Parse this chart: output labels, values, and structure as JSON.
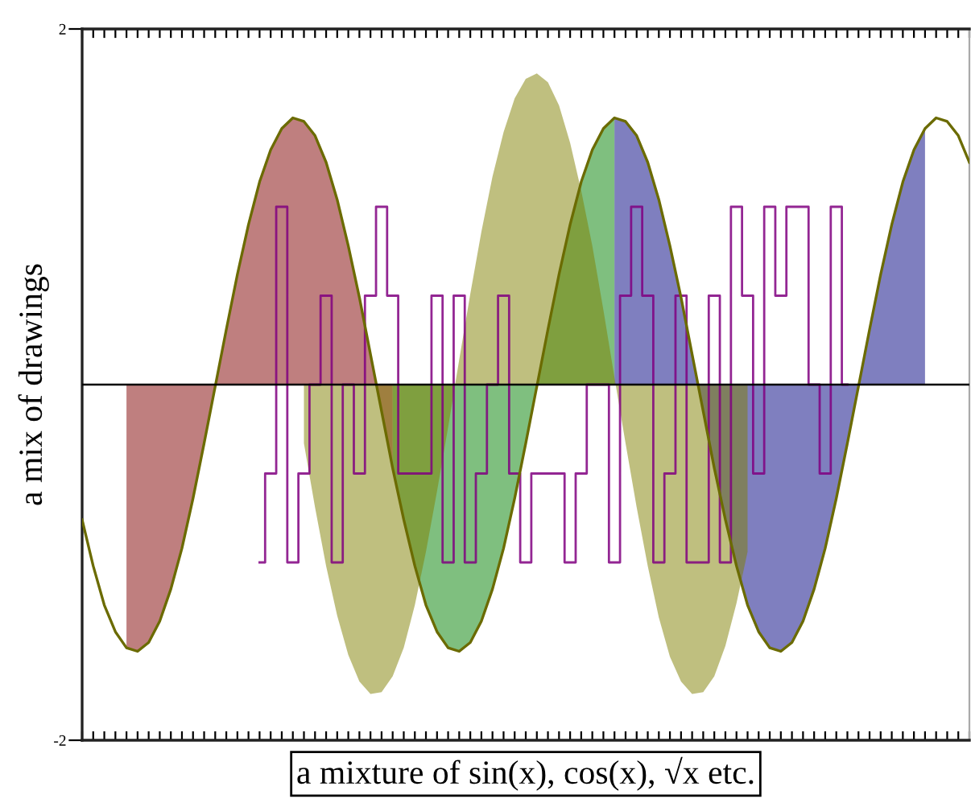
{
  "chart_data": {
    "type": "area",
    "xlabel": "a mixture of sin(x), cos(x), √x etc.",
    "ylabel": "a mix of drawings",
    "categories": [
      null,
      null,
      null,
      null,
      null,
      null,
      null,
      null,
      null,
      null,
      null,
      null,
      null,
      null,
      null,
      null,
      null,
      null,
      null,
      null,
      null,
      null,
      null,
      null,
      null,
      null,
      null,
      null,
      null,
      null,
      null,
      null,
      null,
      null,
      null,
      null,
      null,
      null,
      null,
      null,
      null,
      null,
      null,
      null,
      null,
      null,
      null,
      null,
      null,
      null,
      null,
      null,
      null,
      null,
      null,
      null,
      null,
      null,
      null,
      null,
      null,
      null,
      null,
      null,
      null,
      null,
      null,
      null,
      null,
      null,
      null,
      null,
      null,
      null,
      null,
      null,
      null,
      null,
      null,
      null,
      null
    ],
    "ylim": [
      -2,
      2
    ],
    "yticks": [
      -2,
      2
    ],
    "grid": false,
    "legend": false,
    "ref_lines": [
      {
        "axis": "y",
        "value": 0,
        "color": "#000000"
      }
    ],
    "series": [
      {
        "color": "#800000",
        "values": [
          null,
          null,
          null,
          null,
          -1.48,
          -1.5,
          -1.45,
          -1.33,
          -1.15,
          -0.92,
          -0.64,
          -0.33,
          -0.01,
          0.31,
          0.62,
          0.9,
          1.14,
          1.32,
          1.44,
          1.5,
          1.48,
          1.4,
          1.25,
          1.04,
          0.78,
          0.49,
          0.17,
          -0.15,
          -0.47,
          null,
          null,
          null,
          null,
          null,
          null,
          null,
          null,
          null,
          null,
          null,
          null,
          null,
          null,
          null,
          null,
          null,
          null,
          null,
          null,
          null,
          null,
          null,
          null,
          null,
          null,
          null,
          null,
          null,
          null,
          null,
          null,
          null,
          null,
          null,
          null,
          null,
          null,
          null,
          null,
          null,
          null,
          null,
          null,
          null,
          null,
          null,
          null,
          null,
          null,
          null,
          null
        ]
      },
      {
        "color": "#008000",
        "values": [
          null,
          null,
          null,
          null,
          null,
          null,
          null,
          null,
          null,
          null,
          null,
          null,
          null,
          null,
          null,
          null,
          null,
          null,
          null,
          null,
          null,
          null,
          null,
          null,
          null,
          null,
          null,
          null,
          -0.47,
          -0.76,
          -1.02,
          -1.24,
          -1.39,
          -1.48,
          -1.5,
          -1.45,
          -1.33,
          -1.15,
          -0.92,
          -0.64,
          -0.33,
          -0.01,
          0.31,
          0.62,
          0.9,
          1.14,
          1.32,
          1.44,
          1.5,
          null,
          null,
          null,
          null,
          null,
          null,
          null,
          null,
          null,
          null,
          null,
          null,
          null,
          null,
          null,
          null,
          null,
          null,
          null,
          null,
          null,
          null,
          null,
          null,
          null,
          null,
          null,
          null,
          null,
          null,
          null,
          null
        ]
      },
      {
        "color": "#000080",
        "values": [
          null,
          null,
          null,
          null,
          null,
          null,
          null,
          null,
          null,
          null,
          null,
          null,
          null,
          null,
          null,
          null,
          null,
          null,
          null,
          null,
          null,
          null,
          null,
          null,
          null,
          null,
          null,
          null,
          null,
          null,
          null,
          null,
          null,
          null,
          null,
          null,
          null,
          null,
          null,
          null,
          null,
          null,
          null,
          null,
          null,
          null,
          null,
          null,
          1.5,
          1.48,
          1.4,
          1.25,
          1.04,
          0.78,
          0.49,
          0.17,
          -0.15,
          -0.47,
          -0.76,
          -1.02,
          -1.24,
          -1.39,
          -1.48,
          -1.5,
          -1.45,
          -1.33,
          -1.15,
          -0.92,
          -0.64,
          -0.33,
          -0.01,
          0.31,
          0.62,
          0.9,
          1.14,
          1.32,
          1.44,
          null,
          null,
          null,
          null
        ]
      },
      {
        "color": "#808000",
        "values": [
          null,
          null,
          null,
          null,
          null,
          null,
          null,
          null,
          null,
          null,
          null,
          null,
          null,
          null,
          null,
          null,
          null,
          null,
          null,
          null,
          -0.33,
          -0.69,
          -1.02,
          -1.3,
          -1.52,
          -1.67,
          -1.74,
          -1.73,
          -1.64,
          -1.48,
          -1.24,
          -0.94,
          -0.6,
          -0.24,
          0.14,
          0.51,
          0.86,
          1.17,
          1.42,
          1.61,
          1.72,
          1.75,
          1.7,
          1.57,
          1.36,
          1.09,
          0.78,
          0.42,
          0.04,
          -0.33,
          -0.69,
          -1.02,
          -1.31,
          -1.53,
          -1.67,
          -1.74,
          -1.73,
          -1.64,
          -1.47,
          -1.23,
          -0.94,
          null,
          null,
          null,
          null,
          null,
          null,
          null,
          null,
          null,
          null,
          null,
          null,
          null,
          null,
          null,
          null,
          null,
          null,
          null,
          null
        ]
      },
      {
        "type": "step",
        "color": "#800080",
        "values": [
          null,
          null,
          null,
          null,
          null,
          null,
          null,
          null,
          null,
          null,
          null,
          null,
          null,
          null,
          null,
          null,
          -1,
          -0.5,
          1,
          -1,
          -0.5,
          0,
          0.5,
          -1,
          0,
          -0.5,
          0.5,
          1,
          0.5,
          -0.5,
          -0.5,
          -0.5,
          0.5,
          -1,
          0.5,
          -1,
          -0.5,
          0,
          0.5,
          -0.5,
          -1,
          -0.5,
          -0.5,
          -0.5,
          -1,
          -0.5,
          0,
          0,
          -1,
          0.5,
          1,
          0.5,
          -1,
          -0.5,
          0.5,
          -1,
          -1,
          0.5,
          -1,
          1,
          0.5,
          -0.5,
          1,
          0.5,
          1,
          1,
          0,
          -0.5,
          1,
          0,
          null,
          null,
          null,
          null,
          null,
          null,
          null,
          null,
          null,
          null,
          null
        ]
      },
      {
        "type": "line",
        "color": "#6b6b00",
        "values": [
          -0.76,
          -1.02,
          -1.24,
          -1.39,
          -1.48,
          -1.5,
          -1.45,
          -1.33,
          -1.15,
          -0.92,
          -0.64,
          -0.33,
          -0.01,
          0.31,
          0.62,
          0.9,
          1.14,
          1.32,
          1.44,
          1.5,
          1.48,
          1.4,
          1.25,
          1.04,
          0.78,
          0.49,
          0.17,
          -0.15,
          -0.47,
          -0.76,
          -1.02,
          -1.24,
          -1.39,
          -1.48,
          -1.5,
          -1.45,
          -1.33,
          -1.15,
          -0.92,
          -0.64,
          -0.33,
          -0.01,
          0.31,
          0.62,
          0.9,
          1.14,
          1.32,
          1.44,
          1.5,
          1.48,
          1.4,
          1.25,
          1.04,
          0.78,
          0.49,
          0.17,
          -0.15,
          -0.47,
          -0.76,
          -1.02,
          -1.24,
          -1.39,
          -1.48,
          -1.5,
          -1.45,
          -1.33,
          -1.15,
          -0.92,
          -0.64,
          -0.33,
          -0.01,
          0.31,
          0.62,
          0.9,
          1.14,
          1.32,
          1.44,
          1.5,
          1.48,
          1.4,
          1.25
        ]
      }
    ]
  }
}
